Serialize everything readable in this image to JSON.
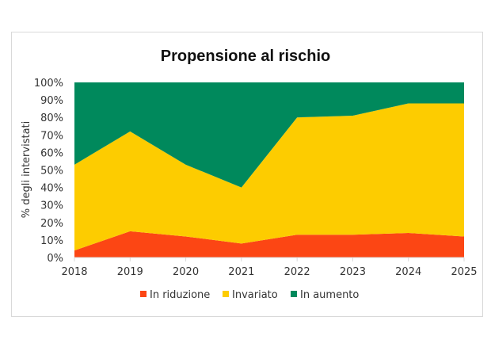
{
  "chart_data": {
    "type": "area",
    "stacked": true,
    "percent_stacked": true,
    "title": "Propensione al rischio",
    "xlabel": "",
    "ylabel": "% degli intervistati",
    "categories": [
      "2018",
      "2019",
      "2020",
      "2021",
      "2022",
      "2023",
      "2024",
      "2025"
    ],
    "series": [
      {
        "name": "In riduzione",
        "color": "#FC4614",
        "values": [
          4,
          15,
          12,
          8,
          13,
          13,
          14,
          12
        ]
      },
      {
        "name": "Invariato",
        "color": "#FDCC00",
        "values": [
          49,
          57,
          41,
          32,
          67,
          68,
          74,
          76
        ]
      },
      {
        "name": "In aumento",
        "color": "#00895C",
        "values": [
          47,
          28,
          47,
          60,
          20,
          19,
          12,
          12
        ]
      }
    ],
    "yticks": [
      "0%",
      "10%",
      "20%",
      "30%",
      "40%",
      "50%",
      "60%",
      "70%",
      "80%",
      "90%",
      "100%"
    ],
    "ylim": [
      0,
      100
    ],
    "grid": false,
    "legend_position": "bottom"
  }
}
